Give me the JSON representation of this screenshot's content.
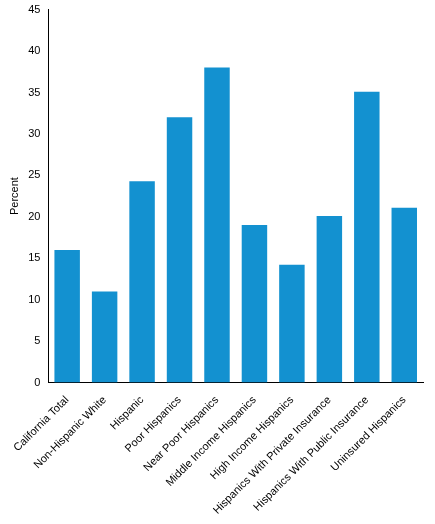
{
  "chart_data": {
    "type": "bar",
    "y_label": "Percent",
    "categories": [
      "California Total",
      "Non-Hispanic White",
      "Hispanic",
      "Poor Hispanics",
      "Near Poor Hispanics",
      "Middle Income Hispanics",
      "High Income Hispanics",
      "Hispanics With Private Insurance",
      "Hispanics With Public Insurance",
      "Uninsured Hispanics"
    ],
    "values": [
      16,
      11,
      24.3,
      32,
      38,
      19,
      14.2,
      20.1,
      35.1,
      21.1
    ],
    "color": "#1391d0",
    "ylim": [
      0,
      45
    ],
    "yticks": [
      0,
      5,
      10,
      15,
      20,
      25,
      30,
      35,
      40,
      45
    ],
    "grid": false
  }
}
